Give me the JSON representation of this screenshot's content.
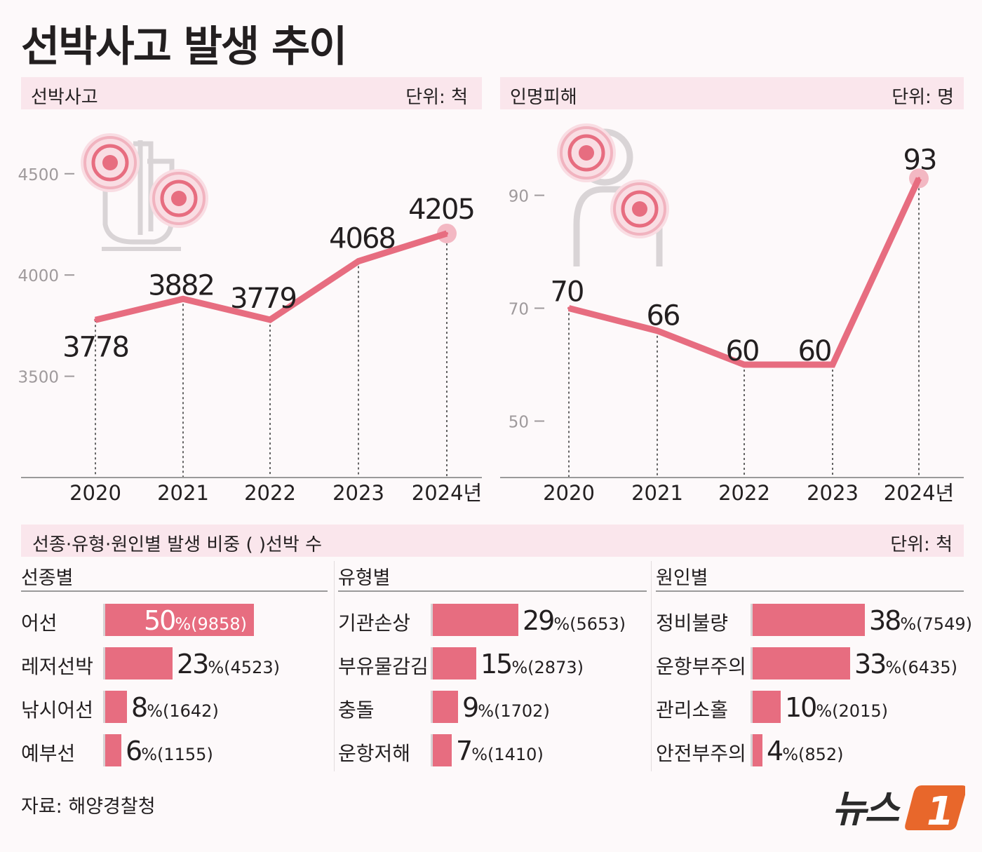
{
  "title": "선박사고 발생 추이",
  "left_panel": {
    "label": "선박사고",
    "unit": "단위: 척"
  },
  "right_panel": {
    "label": "인명피해",
    "unit": "단위: 명"
  },
  "chart_data": [
    {
      "type": "line",
      "title": "선박사고",
      "unit": "단위: 척",
      "categories": [
        "2020",
        "2021",
        "2022",
        "2023",
        "2024년"
      ],
      "values": [
        3778,
        3882,
        3779,
        4068,
        4205
      ],
      "yticks": [
        3500,
        4000,
        4500
      ],
      "ylim": [
        3000,
        4700
      ]
    },
    {
      "type": "line",
      "title": "인명피해",
      "unit": "단위: 명",
      "categories": [
        "2020",
        "2021",
        "2022",
        "2023",
        "2024년"
      ],
      "values": [
        70,
        66,
        60,
        60,
        93
      ],
      "yticks": [
        50,
        70,
        90
      ],
      "ylim": [
        40,
        101
      ]
    },
    {
      "type": "bar",
      "title": "선종별",
      "categories": [
        "어선",
        "레저선박",
        "낚시어선",
        "예부선"
      ],
      "percents": [
        50,
        23,
        8,
        6
      ],
      "counts": [
        "(9858)",
        "(4523)",
        "(1642)",
        "(1155)"
      ]
    },
    {
      "type": "bar",
      "title": "유형별",
      "categories": [
        "기관손상",
        "부유물감김",
        "충돌",
        "운항저해"
      ],
      "percents": [
        29,
        15,
        9,
        7
      ],
      "counts": [
        "(5653)",
        "(2873)",
        "(1702)",
        "(1410)"
      ]
    },
    {
      "type": "bar",
      "title": "원인별",
      "categories": [
        "정비불량",
        "운항부주의",
        "관리소홀",
        "안전부주의"
      ],
      "percents": [
        38,
        33,
        10,
        4
      ],
      "counts": [
        "(7549)",
        "(6435)",
        "(2015)",
        "(852)"
      ]
    }
  ],
  "breakdown": {
    "label": "선종·유형·원인별 발생 비중  ( )선박 수",
    "unit": "단위: 척",
    "pct_sign": "%"
  },
  "source": "자료: 해양경찰청",
  "logo": {
    "text": "뉴스",
    "mark": "1"
  },
  "colors": {
    "accent": "#e76d80",
    "band": "#fae6ec",
    "halo": "#f3b8c3",
    "icon": "#d9d4d6",
    "logo_orange": "#e8672b",
    "logo_dark": "#2b2b2b"
  }
}
